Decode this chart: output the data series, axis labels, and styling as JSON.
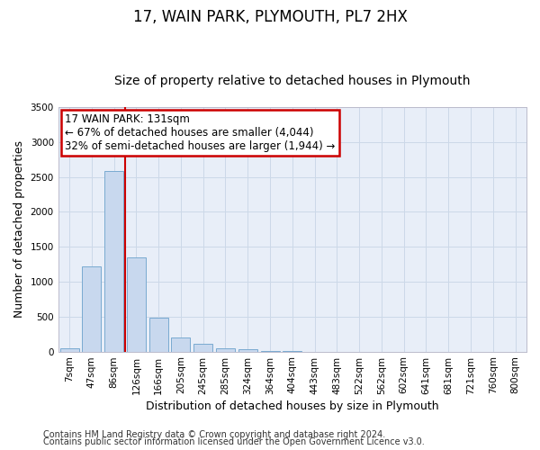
{
  "title": "17, WAIN PARK, PLYMOUTH, PL7 2HX",
  "subtitle": "Size of property relative to detached houses in Plymouth",
  "xlabel": "Distribution of detached houses by size in Plymouth",
  "ylabel": "Number of detached properties",
  "categories": [
    "7sqm",
    "47sqm",
    "86sqm",
    "126sqm",
    "166sqm",
    "205sqm",
    "245sqm",
    "285sqm",
    "324sqm",
    "364sqm",
    "404sqm",
    "443sqm",
    "483sqm",
    "522sqm",
    "562sqm",
    "602sqm",
    "641sqm",
    "681sqm",
    "721sqm",
    "760sqm",
    "800sqm"
  ],
  "values": [
    50,
    1220,
    2580,
    1350,
    490,
    195,
    110,
    50,
    30,
    10,
    5,
    0,
    0,
    0,
    0,
    0,
    0,
    0,
    0,
    0,
    0
  ],
  "bar_color": "#c8d8ee",
  "bar_edge_color": "#7aaad0",
  "highlight_line_index": 3,
  "annotation_line1": "17 WAIN PARK: 131sqm",
  "annotation_line2": "← 67% of detached houses are smaller (4,044)",
  "annotation_line3": "32% of semi-detached houses are larger (1,944) →",
  "annotation_box_facecolor": "#ffffff",
  "annotation_box_edgecolor": "#cc0000",
  "ylim": [
    0,
    3500
  ],
  "yticks": [
    0,
    500,
    1000,
    1500,
    2000,
    2500,
    3000,
    3500
  ],
  "grid_color": "#ccd8e8",
  "bg_color": "#e8eef8",
  "footer_line1": "Contains HM Land Registry data © Crown copyright and database right 2024.",
  "footer_line2": "Contains public sector information licensed under the Open Government Licence v3.0.",
  "title_fontsize": 12,
  "subtitle_fontsize": 10,
  "axis_label_fontsize": 9,
  "tick_fontsize": 7.5,
  "annotation_fontsize": 8.5,
  "footer_fontsize": 7
}
